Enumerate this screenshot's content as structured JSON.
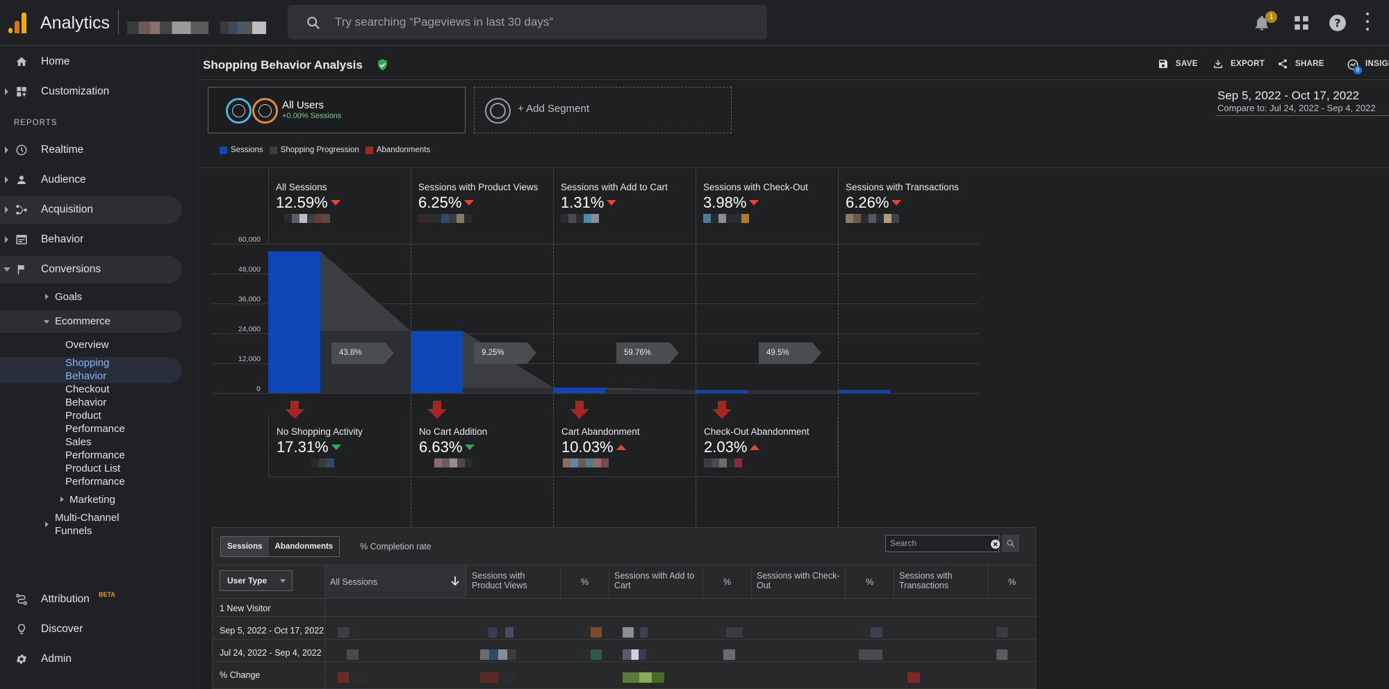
{
  "app": {
    "title": "Analytics"
  },
  "search": {
    "placeholder": "Try searching “Pageviews in last 30 days”"
  },
  "notifications": {
    "count": "1"
  },
  "sidebar": {
    "items": [
      {
        "label": "Home",
        "icon": "home-icon"
      },
      {
        "label": "Customization",
        "icon": "dashboard-icon"
      },
      {
        "label": "Realtime",
        "icon": "clock-icon"
      },
      {
        "label": "Audience",
        "icon": "person-icon"
      },
      {
        "label": "Acquisition",
        "icon": "branch-icon"
      },
      {
        "label": "Behavior",
        "icon": "window-icon"
      },
      {
        "label": "Conversions",
        "icon": "flag-icon"
      }
    ],
    "reports_header": "REPORTS",
    "conversions_sub": {
      "goals": "Goals",
      "ecommerce": "Ecommerce",
      "ecommerce_items": [
        "Overview",
        "Shopping Behavior",
        "Checkout Behavior",
        "Product Performance",
        "Sales Performance",
        "Product List Performance"
      ],
      "marketing": "Marketing",
      "multichannel": "Multi-Channel Funnels"
    },
    "bottom": [
      {
        "label": "Attribution",
        "icon": "attribution-icon",
        "badge": "BETA"
      },
      {
        "label": "Discover",
        "icon": "lightbulb-icon"
      },
      {
        "label": "Admin",
        "icon": "gear-icon"
      }
    ]
  },
  "report": {
    "title": "Shopping Behavior Analysis",
    "actions": {
      "save": "SAVE",
      "export": "EXPORT",
      "share": "SHARE",
      "insights": "INSIGHTS",
      "insights_badge": "8"
    }
  },
  "segments": {
    "all_users": "All Users",
    "all_users_sub": "+0.00% Sessions",
    "add": "+ Add Segment"
  },
  "date_range": {
    "main": "Sep 5, 2022 - Oct 17, 2022",
    "compare": "Compare to: Jul 24, 2022 - Sep 4, 2022"
  },
  "legend": [
    {
      "label": "Sessions",
      "color": "#0d47b5"
    },
    {
      "label": "Shopping Progression",
      "color": "#3c3d40"
    },
    {
      "label": "Abandonments",
      "color": "#a52520"
    }
  ],
  "funnel": {
    "y_ticks": [
      "60,000",
      "48,000",
      "36,000",
      "24,000",
      "12,000",
      "0"
    ],
    "stages": [
      {
        "title": "All Sessions",
        "value": "12.59%",
        "trend": "down"
      },
      {
        "title": "Sessions with Product Views",
        "value": "6.25%",
        "trend": "down"
      },
      {
        "title": "Sessions with Add to Cart",
        "value": "1.31%",
        "trend": "down"
      },
      {
        "title": "Sessions with Check-Out",
        "value": "3.98%",
        "trend": "down"
      },
      {
        "title": "Sessions with Transactions",
        "value": "6.26%",
        "trend": "down"
      }
    ],
    "progressions": [
      "43.8%",
      "9.25%",
      "59.76%",
      "49.5%"
    ],
    "abandonments": [
      {
        "title": "No Shopping Activity",
        "value": "17.31%",
        "trend": "down-good"
      },
      {
        "title": "No Cart Addition",
        "value": "6.63%",
        "trend": "down-good"
      },
      {
        "title": "Cart Abandonment",
        "value": "10.03%",
        "trend": "up-bad"
      },
      {
        "title": "Check-Out Abandonment",
        "value": "2.03%",
        "trend": "up-bad"
      }
    ]
  },
  "chart_data": {
    "type": "bar",
    "categories": [
      "All Sessions",
      "Sessions with Product Views",
      "Sessions with Add to Cart",
      "Sessions with Check-Out",
      "Sessions with Transactions"
    ],
    "values": [
      57000,
      25000,
      2200,
      1300,
      1300
    ],
    "ylim": [
      0,
      60000
    ]
  },
  "table": {
    "toggles": [
      "Sessions",
      "Abandonments"
    ],
    "completion": "% Completion rate",
    "search_placeholder": "Search",
    "dimension": "User Type",
    "headers": [
      "All Sessions",
      "Sessions with Product Views",
      "%",
      "Sessions with Add to Cart",
      "%",
      "Sessions with Check-Out",
      "%",
      "Sessions with Transactions",
      "%"
    ],
    "rows": [
      {
        "label": "1   New Visitor"
      },
      {
        "label": "Sep 5, 2022 - Oct 17, 2022"
      },
      {
        "label": "Jul 24, 2022 - Sep 4, 2022"
      },
      {
        "label": "% Change"
      }
    ]
  }
}
